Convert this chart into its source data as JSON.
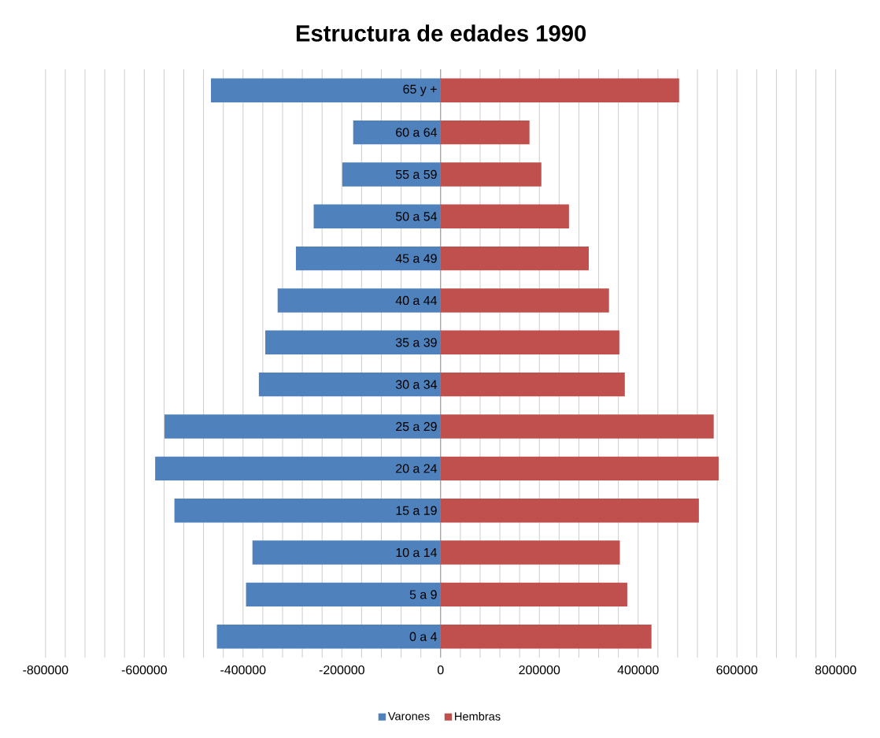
{
  "chart_data": {
    "type": "bar",
    "orientation": "horizontal",
    "title": "Estructura de edades 1990",
    "categories": [
      "65 y +",
      "60 a 64",
      "55 a 59",
      "50 a 54",
      "45 a 49",
      "40 a 44",
      "35 a 39",
      "30 a 34",
      "25 a 29",
      "20 a 24",
      "15 a 19",
      "10 a 14",
      "5 a 9",
      "0 a 4"
    ],
    "series": [
      {
        "name": "Varones",
        "color": "#4f81bd",
        "values": [
          -465000,
          -177000,
          -199000,
          -257000,
          -293000,
          -330000,
          -355000,
          -368000,
          -559000,
          -578000,
          -539000,
          -381000,
          -394000,
          -453000
        ]
      },
      {
        "name": "Hembras",
        "color": "#c0504d",
        "values": [
          483000,
          180000,
          204000,
          260000,
          300000,
          341000,
          362000,
          373000,
          553000,
          563000,
          523000,
          363000,
          378000,
          427000
        ]
      }
    ],
    "xlim": [
      -800000,
      800000
    ],
    "xticks": [
      -800000,
      {
        "value": -760000,
        "label": null
      },
      {
        "value": -720000,
        "label": null
      },
      {
        "value": -680000,
        "label": null
      },
      {
        "value": -640000,
        "label": null
      },
      -600000,
      {
        "value": -560000,
        "label": null
      },
      {
        "value": -520000,
        "label": null
      },
      {
        "value": -480000,
        "label": null
      },
      {
        "value": -440000,
        "label": null
      },
      -400000,
      {
        "value": -360000,
        "label": null
      },
      {
        "value": -320000,
        "label": null
      },
      {
        "value": -280000,
        "label": null
      },
      {
        "value": -240000,
        "label": null
      },
      -200000,
      {
        "value": -160000,
        "label": null
      },
      {
        "value": -120000,
        "label": null
      },
      {
        "value": -80000,
        "label": null
      },
      {
        "value": -40000,
        "label": null
      },
      0,
      {
        "value": 40000,
        "label": null
      },
      {
        "value": 80000,
        "label": null
      },
      {
        "value": 120000,
        "label": null
      },
      {
        "value": 160000,
        "label": null
      },
      200000,
      {
        "value": 240000,
        "label": null
      },
      {
        "value": 280000,
        "label": null
      },
      {
        "value": 320000,
        "label": null
      },
      {
        "value": 360000,
        "label": null
      },
      400000,
      {
        "value": 440000,
        "label": null
      },
      {
        "value": 480000,
        "label": null
      },
      {
        "value": 520000,
        "label": null
      },
      {
        "value": 560000,
        "label": null
      },
      600000,
      {
        "value": 640000,
        "label": null
      },
      {
        "value": 680000,
        "label": null
      },
      {
        "value": 720000,
        "label": null
      },
      {
        "value": 760000,
        "label": null
      },
      800000
    ],
    "stacked": true,
    "grid": "x",
    "legend": "bottom"
  }
}
